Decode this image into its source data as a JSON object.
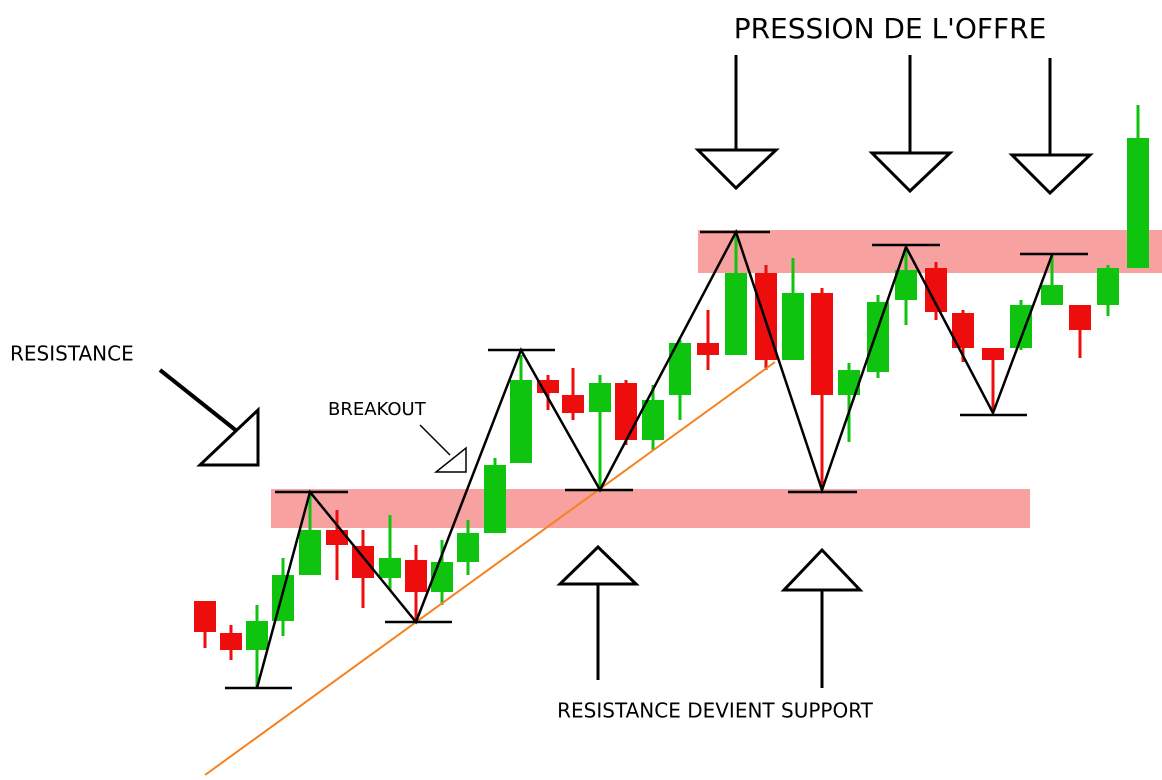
{
  "header": {
    "title": "PRESSION DE L'OFFRE"
  },
  "labels": {
    "resistance": "RESISTANCE",
    "breakout": "BREAKOUT",
    "support": "RESISTANCE DEVIENT SUPPORT"
  }
}
